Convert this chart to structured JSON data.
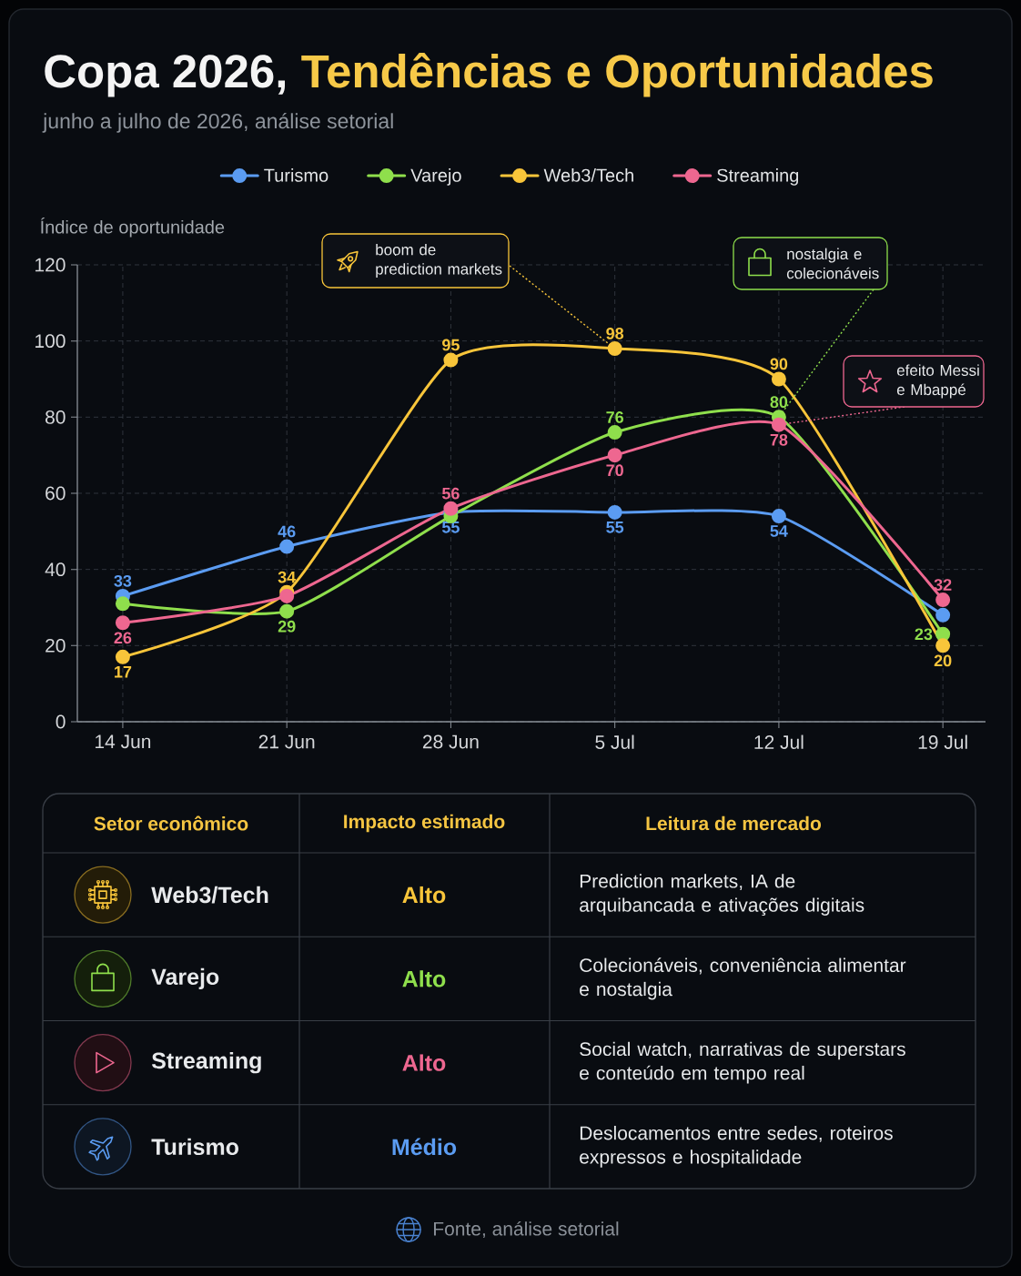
{
  "chart_data": [
    {
      "type": "line",
      "title": "Copa 2026, Tendências e Oportunidades",
      "subtitle": "junho a julho de 2026, análise setorial",
      "ylabel": "Índice de oportunidade",
      "categories": [
        "14 Jun",
        "21 Jun",
        "28 Jun",
        "5 Jul",
        "12 Jul",
        "19 Jul"
      ],
      "ylim": [
        0,
        120
      ],
      "yticks": [
        0,
        20,
        40,
        60,
        80,
        100,
        120
      ],
      "grid": true,
      "legend": "top",
      "marker": "circle",
      "line_style": "solid",
      "series": [
        {
          "name": "Turismo",
          "color": "#5b9cf2",
          "values": [
            33,
            46,
            55,
            55,
            54,
            28
          ],
          "value_labels": [
            "33",
            "46",
            "55",
            "55",
            "54",
            null
          ]
        },
        {
          "name": "Varejo",
          "color": "#8fdf4c",
          "values": [
            31,
            29,
            54,
            76,
            80,
            23
          ],
          "value_labels": [
            null,
            "29",
            null,
            "76",
            "80",
            "23"
          ]
        },
        {
          "name": "Web3/Tech",
          "color": "#f8c53a",
          "values": [
            17,
            34,
            95,
            98,
            90,
            20
          ],
          "value_labels": [
            "17",
            "34",
            "95",
            "98",
            "90",
            "20"
          ]
        },
        {
          "name": "Streaming",
          "color": "#ee6790",
          "values": [
            26,
            33,
            56,
            70,
            78,
            32
          ],
          "value_labels": [
            "26",
            null,
            "56",
            "70",
            "78",
            "32"
          ]
        }
      ],
      "annotations": [
        {
          "text": "boom de prediction markets",
          "x": "5 Jul",
          "y": 98
        },
        {
          "text": "nostalgia e colecionáveis",
          "x": "12 Jul",
          "y": 80
        },
        {
          "text": "efeito Messi e Mbappé",
          "x": "12 Jul",
          "y": 78
        },
        "Fonte, análise setorial"
      ]
    },
    {
      "type": "other",
      "colors": [
        "#f8c53a",
        "#8fdf4c",
        "#ee6790",
        "#5b9cf2"
      ],
      "annotations": [
        "Setor econômico",
        "Impacto estimado",
        "Leitura de mercado",
        "Web3/Tech",
        "Alto",
        "Prediction markets, IA de arquibancada e ativações digitais",
        "Varejo",
        "Alto",
        "Colecionáveis, conveniência alimentar e nostalgia",
        "Streaming",
        "Alto",
        "Social watch, narrativas de superstars e conteúdo em tempo real",
        "Turismo",
        "Médio",
        "Deslocamentos entre sedes, roteiros expressos e hospitalidade"
      ]
    }
  ]
}
